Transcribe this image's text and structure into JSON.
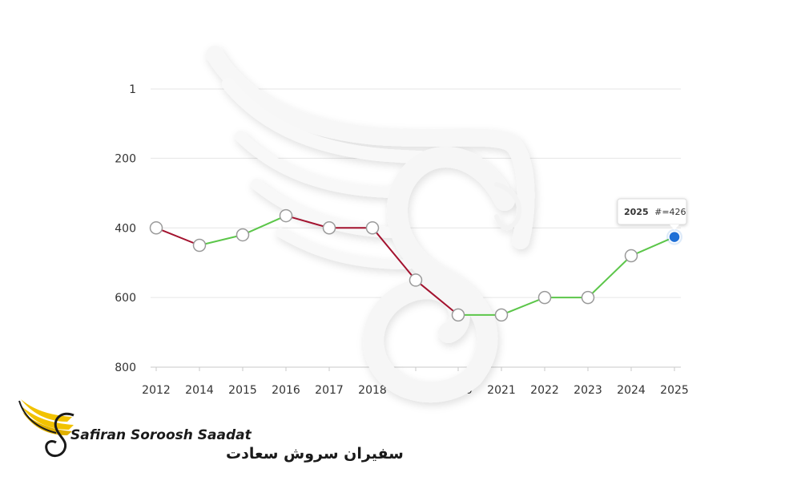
{
  "chart_data": {
    "type": "line",
    "title": "",
    "xlabel": "",
    "ylabel": "",
    "categories": [
      "2012",
      "2014",
      "2015",
      "2016",
      "2017",
      "2018",
      "2019",
      "2020",
      "2021",
      "2022",
      "2023",
      "2024",
      "2025"
    ],
    "values": [
      400,
      450,
      420,
      365,
      400,
      400,
      550,
      650,
      650,
      600,
      600,
      480,
      426
    ],
    "y_axis": {
      "reversed": true,
      "range": [
        1,
        800
      ],
      "ticks": [
        1,
        200,
        400,
        600,
        800
      ]
    },
    "grid": true,
    "colors": {
      "rise": "#5cc64a",
      "fall": "#a3122e",
      "highlight": "#1e6fd6",
      "marker_stroke": "#9a9a9a"
    },
    "tooltip": {
      "year": "2025",
      "label": "#=426"
    }
  },
  "brand": {
    "latin": "Safiran Soroosh Saadat",
    "farsi": "سفیران سروش سعادت",
    "colors": {
      "wing": "#f2c200",
      "ink": "#1a1a1a"
    }
  },
  "watermark": {
    "icon": "swan-wing-logo-icon"
  }
}
